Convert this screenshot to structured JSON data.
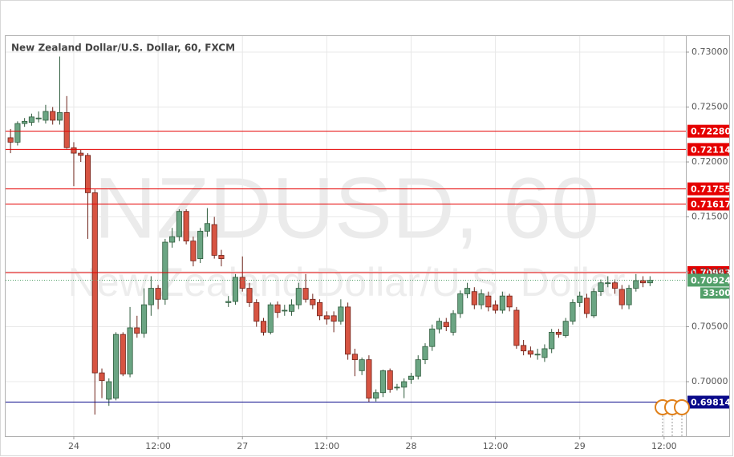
{
  "chart_data": {
    "type": "candlestick",
    "title": "New Zealand Dollar/U.S. Dollar, 60, FXCM",
    "watermark_symbol": "NZDUSD, 60",
    "watermark_name": "New Zealand Dollar/U.S. Dollar",
    "up_color": "#6ba583",
    "down_color": "#d75442",
    "grid": true,
    "x": [
      0,
      1,
      2,
      3,
      4,
      5,
      6,
      7,
      8,
      9,
      10,
      11,
      12,
      13,
      14,
      15,
      16,
      17,
      18,
      19,
      20,
      21,
      22,
      23,
      24,
      25,
      26,
      27,
      28,
      29,
      30,
      31,
      32,
      33,
      34,
      35,
      36,
      37,
      38,
      39,
      40,
      41,
      42,
      43,
      44,
      45,
      46,
      47,
      48,
      49,
      50,
      51,
      52,
      53,
      54,
      55,
      56,
      57,
      58,
      59,
      60,
      61,
      62,
      63,
      64,
      65,
      66,
      67,
      68,
      69,
      70,
      71,
      72,
      73,
      74,
      75,
      76,
      77,
      78,
      79,
      80,
      81,
      82,
      83,
      84,
      85,
      86,
      87,
      88,
      89,
      90,
      91
    ],
    "open": [
      0.7222,
      0.7218,
      0.7235,
      0.7236,
      0.724,
      0.7238,
      0.7246,
      0.7238,
      0.7245,
      0.7213,
      0.7208,
      0.7206,
      0.7172,
      0.7008,
      0.6984,
      0.6985,
      0.7043,
      0.7007,
      0.7049,
      0.7044,
      0.707,
      0.7085,
      0.7075,
      0.7127,
      0.7132,
      0.7155,
      0.7128,
      0.7112,
      0.7137,
      0.7143,
      0.7115,
      0.7072,
      0.7073,
      0.7095,
      0.7085,
      0.7072,
      0.7055,
      0.7045,
      0.707,
      0.7065,
      0.7064,
      0.707,
      0.7085,
      0.7075,
      0.7072,
      0.706,
      0.706,
      0.7055,
      0.7068,
      0.7025,
      0.701,
      0.702,
      0.6985,
      0.699,
      0.701,
      0.6995,
      0.6995,
      0.7002,
      0.7005,
      0.702,
      0.7032,
      0.7048,
      0.7054,
      0.7045,
      0.7062,
      0.708,
      0.7082,
      0.707,
      0.7078,
      0.707,
      0.7065,
      0.7078,
      0.7065,
      0.7033,
      0.7028,
      0.7025,
      0.7022,
      0.703,
      0.7045,
      0.7042,
      0.7055,
      0.7072,
      0.7076,
      0.706,
      0.7082,
      0.709,
      0.709,
      0.7084,
      0.707,
      0.7085,
      0.7092,
      0.709
    ],
    "high": [
      0.723,
      0.7237,
      0.724,
      0.7244,
      0.7246,
      0.7252,
      0.725,
      0.7296,
      0.726,
      0.7218,
      0.7211,
      0.7208,
      0.7175,
      0.7012,
      0.7003,
      0.7045,
      0.7045,
      0.7068,
      0.706,
      0.7085,
      0.7096,
      0.7088,
      0.713,
      0.714,
      0.7157,
      0.7157,
      0.7132,
      0.714,
      0.7158,
      0.715,
      0.712,
      0.7078,
      0.7098,
      0.7114,
      0.709,
      0.7075,
      0.7058,
      0.7072,
      0.7073,
      0.707,
      0.7075,
      0.709,
      0.7098,
      0.708,
      0.7075,
      0.7064,
      0.7064,
      0.7075,
      0.7072,
      0.703,
      0.7022,
      0.7024,
      0.6993,
      0.7011,
      0.7012,
      0.6998,
      0.7003,
      0.7008,
      0.7024,
      0.7035,
      0.7052,
      0.7058,
      0.7058,
      0.7065,
      0.7083,
      0.709,
      0.7086,
      0.7084,
      0.7082,
      0.7074,
      0.7082,
      0.708,
      0.7068,
      0.7038,
      0.7032,
      0.703,
      0.7034,
      0.7048,
      0.7048,
      0.7058,
      0.7075,
      0.7082,
      0.708,
      0.7085,
      0.7093,
      0.7096,
      0.7093,
      0.7088,
      0.7088,
      0.7098,
      0.7096,
      0.7096
    ],
    "low": [
      0.7208,
      0.7215,
      0.7232,
      0.7233,
      0.7236,
      0.7235,
      0.7234,
      0.7234,
      0.7212,
      0.7178,
      0.72,
      0.713,
      0.697,
      0.6985,
      0.6978,
      0.6983,
      0.7005,
      0.7004,
      0.704,
      0.704,
      0.706,
      0.7066,
      0.707,
      0.7122,
      0.7128,
      0.7125,
      0.7105,
      0.7108,
      0.7132,
      0.7112,
      0.7105,
      0.7068,
      0.707,
      0.7082,
      0.7068,
      0.705,
      0.7042,
      0.7043,
      0.7058,
      0.706,
      0.706,
      0.7066,
      0.7072,
      0.7066,
      0.7056,
      0.7052,
      0.7045,
      0.7052,
      0.702,
      0.7005,
      0.7006,
      0.6981,
      0.6982,
      0.6986,
      0.699,
      0.6992,
      0.6985,
      0.6998,
      0.7002,
      0.7016,
      0.7028,
      0.7044,
      0.7046,
      0.7042,
      0.7058,
      0.7076,
      0.7066,
      0.7066,
      0.7064,
      0.7062,
      0.7062,
      0.7064,
      0.703,
      0.7024,
      0.7022,
      0.702,
      0.7018,
      0.7026,
      0.704,
      0.704,
      0.7052,
      0.7068,
      0.7058,
      0.7058,
      0.7078,
      0.7086,
      0.708,
      0.7066,
      0.7066,
      0.7082,
      0.7086,
      0.7087
    ],
    "close": [
      0.7218,
      0.7235,
      0.7237,
      0.7241,
      0.724,
      0.7246,
      0.7238,
      0.7245,
      0.7213,
      0.7208,
      0.7206,
      0.7172,
      0.7008,
      0.7001,
      0.7,
      0.7043,
      0.7007,
      0.7049,
      0.7044,
      0.707,
      0.7085,
      0.7075,
      0.7127,
      0.7132,
      0.7155,
      0.7128,
      0.711,
      0.7137,
      0.7144,
      0.7115,
      0.7112,
      0.7073,
      0.7095,
      0.7085,
      0.7072,
      0.7055,
      0.7045,
      0.707,
      0.7063,
      0.7065,
      0.707,
      0.7085,
      0.7075,
      0.707,
      0.706,
      0.7057,
      0.7055,
      0.7068,
      0.7025,
      0.702,
      0.702,
      0.6985,
      0.699,
      0.701,
      0.6993,
      0.6995,
      0.7,
      0.7005,
      0.702,
      0.7032,
      0.7048,
      0.7055,
      0.705,
      0.7062,
      0.708,
      0.7085,
      0.707,
      0.708,
      0.7068,
      0.7065,
      0.7078,
      0.7068,
      0.7033,
      0.7028,
      0.7025,
      0.7025,
      0.703,
      0.7045,
      0.7043,
      0.7055,
      0.7072,
      0.7078,
      0.7062,
      0.7082,
      0.709,
      0.709,
      0.7085,
      0.707,
      0.7085,
      0.7092,
      0.709,
      0.70924
    ],
    "xlim": [
      -0.7,
      96.1
    ],
    "xticks": [
      {
        "value": 9,
        "label": "24"
      },
      {
        "value": 21,
        "label": "12:00"
      },
      {
        "value": 33,
        "label": "27"
      },
      {
        "value": 45,
        "label": "12:00"
      },
      {
        "value": 57,
        "label": "28"
      },
      {
        "value": 69,
        "label": "12:00"
      },
      {
        "value": 81,
        "label": "29"
      },
      {
        "value": 93,
        "label": "12:00"
      }
    ],
    "ylim": [
      0.69504,
      0.73146
    ],
    "yticks": [
      {
        "value": 0.7,
        "label": "0.70000"
      },
      {
        "value": 0.705,
        "label": "0.70500"
      },
      {
        "value": 0.71,
        "label": "0.71000"
      },
      {
        "value": 0.715,
        "label": "0.71500"
      },
      {
        "value": 0.72,
        "label": "0.72000"
      },
      {
        "value": 0.725,
        "label": "0.72500"
      },
      {
        "value": 0.73,
        "label": "0.73000"
      }
    ],
    "levels": [
      {
        "value": 0.7228,
        "label": "0.72280",
        "color": "#e50000"
      },
      {
        "value": 0.72114,
        "label": "0.72114",
        "color": "#e50000"
      },
      {
        "value": 0.71755,
        "label": "0.71755",
        "color": "#e50000"
      },
      {
        "value": 0.71617,
        "label": "0.71617",
        "color": "#e50000"
      },
      {
        "value": 0.70993,
        "label": "0.70993",
        "color": "#e50000"
      },
      {
        "value": 0.69814,
        "label": "0.69814",
        "color": "#0a0a8a"
      }
    ],
    "last_price": {
      "value": 0.70924,
      "label": "0.70924",
      "color": "#53a06a"
    },
    "countdown": "33:00"
  }
}
